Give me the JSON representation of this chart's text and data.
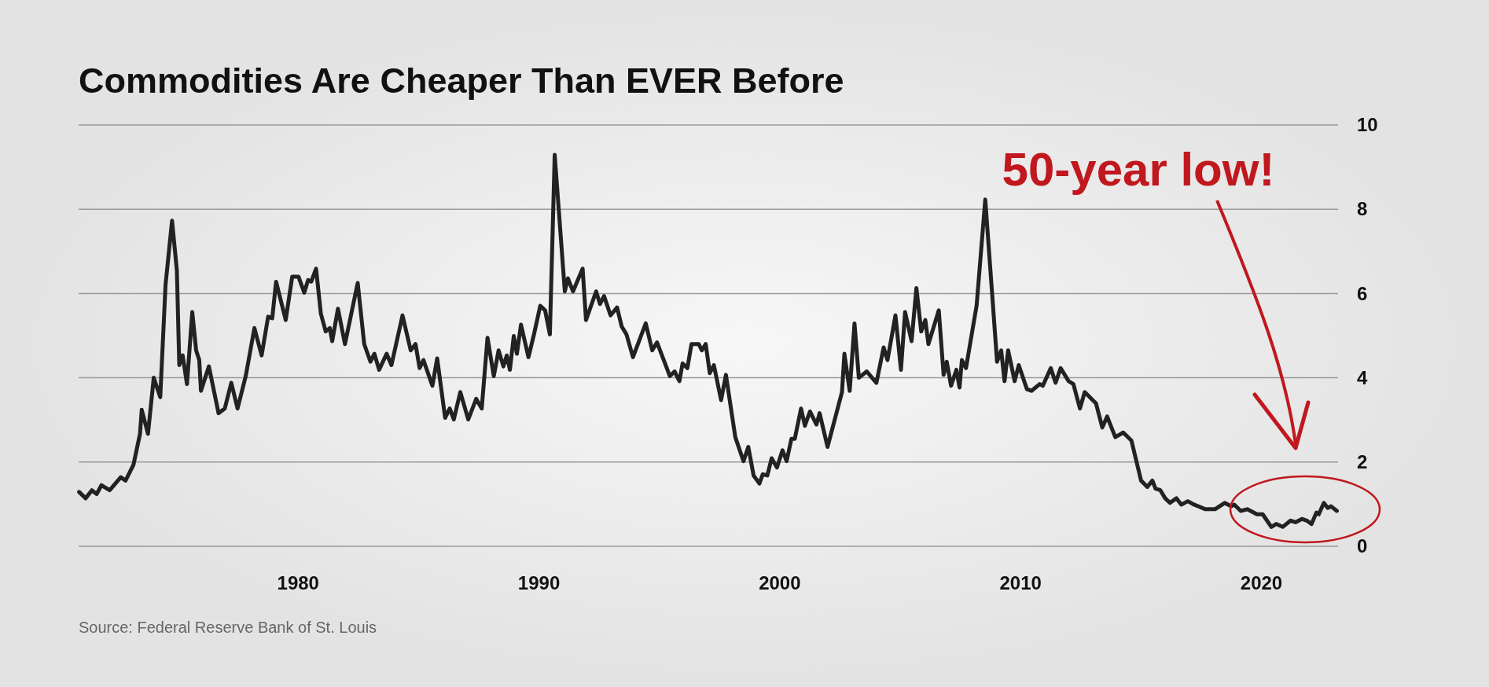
{
  "chart_data": {
    "type": "line",
    "title": "Commodities Are Cheaper Than EVER Before",
    "annotations": [
      "50-year low!",
      "Source: Federal Reserve Bank of St. Louis"
    ],
    "xlim": [
      1970.9,
      2023.2
    ],
    "xticks": [
      1980,
      1990,
      2000,
      2010,
      2020
    ],
    "ylim": [
      0,
      10
    ],
    "yticks": [
      0,
      2,
      4,
      6,
      8,
      10
    ],
    "grid": "y",
    "marker": "none",
    "line_style": "solid",
    "series": [
      {
        "color": "#222222",
        "x": [
          1970.92,
          1971.19,
          1971.45,
          1971.65,
          1971.85,
          1972.19,
          1972.65,
          1972.85,
          1973.18,
          1973.45,
          1973.52,
          1973.78,
          1974.02,
          1974.29,
          1974.51,
          1974.78,
          1974.98,
          1975.08,
          1975.22,
          1975.4,
          1975.62,
          1975.78,
          1975.91,
          1975.98,
          1976.31,
          1976.71,
          1976.97,
          1977.24,
          1977.5,
          1977.84,
          1978.2,
          1978.5,
          1978.77,
          1978.94,
          1979.1,
          1979.5,
          1979.77,
          1980.03,
          1980.27,
          1980.43,
          1980.56,
          1980.76,
          1980.96,
          1981.16,
          1981.33,
          1981.43,
          1981.67,
          1981.96,
          1982.49,
          1982.76,
          1983.02,
          1983.18,
          1983.38,
          1983.69,
          1983.89,
          1984.35,
          1984.69,
          1984.89,
          1985.06,
          1985.22,
          1985.59,
          1985.79,
          1986.12,
          1986.31,
          1986.48,
          1986.75,
          1987.08,
          1987.41,
          1987.64,
          1987.88,
          1988.14,
          1988.34,
          1988.54,
          1988.68,
          1988.81,
          1988.97,
          1989.1,
          1989.27,
          1989.58,
          1989.81,
          1990.07,
          1990.27,
          1990.47,
          1990.67,
          1991.09,
          1991.22,
          1991.43,
          1991.83,
          1991.97,
          1992.39,
          1992.55,
          1992.72,
          1992.99,
          1993.26,
          1993.45,
          1993.65,
          1993.92,
          1994.45,
          1994.72,
          1994.92,
          1995.45,
          1995.65,
          1995.85,
          1995.98,
          1996.18,
          1996.35,
          1996.65,
          1996.78,
          1996.94,
          1997.11,
          1997.28,
          1997.58,
          1997.78,
          1998.17,
          1998.51,
          1998.71,
          1998.93,
          1999.17,
          1999.31,
          1999.5,
          1999.68,
          1999.9,
          2000.13,
          2000.3,
          2000.5,
          2000.64,
          2000.9,
          2001.06,
          2001.27,
          2001.54,
          2001.67,
          2002.0,
          2002.6,
          2002.7,
          2002.92,
          2003.12,
          2003.3,
          2003.63,
          2004.03,
          2004.33,
          2004.49,
          2004.82,
          2005.05,
          2005.22,
          2005.49,
          2005.69,
          2005.89,
          2006.06,
          2006.19,
          2006.62,
          2006.82,
          2006.95,
          2007.13,
          2007.35,
          2007.48,
          2007.58,
          2007.75,
          2008.19,
          2008.55,
          2009.04,
          2009.21,
          2009.35,
          2009.5,
          2009.77,
          2009.94,
          2010.28,
          2010.47,
          2010.81,
          2010.94,
          2011.27,
          2011.47,
          2011.68,
          2012.01,
          2012.21,
          2012.48,
          2012.68,
          2013.15,
          2013.41,
          2013.61,
          2013.95,
          2014.28,
          2014.62,
          2015.02,
          2015.28,
          2015.49,
          2015.62,
          2015.82,
          2016.02,
          2016.22,
          2016.49,
          2016.69,
          2016.96,
          2017.22,
          2017.69,
          2018.09,
          2018.49,
          2018.76,
          2018.89,
          2019.16,
          2019.43,
          2019.83,
          2020.07,
          2020.43,
          2020.63,
          2020.9,
          2021.23,
          2021.43,
          2021.7,
          2021.9,
          2022.1,
          2022.3,
          2022.4,
          2022.61,
          2022.77,
          2022.91,
          2023.15
        ],
        "values": [
          1.29,
          1.14,
          1.33,
          1.24,
          1.45,
          1.33,
          1.64,
          1.56,
          1.94,
          2.67,
          3.24,
          2.67,
          4.0,
          3.54,
          6.21,
          7.73,
          6.55,
          4.3,
          4.53,
          3.85,
          5.56,
          4.65,
          4.42,
          3.69,
          4.27,
          3.16,
          3.27,
          3.88,
          3.27,
          4.04,
          5.18,
          4.53,
          5.45,
          5.41,
          6.28,
          5.37,
          6.4,
          6.4,
          6.02,
          6.32,
          6.28,
          6.59,
          5.52,
          5.1,
          5.18,
          4.87,
          5.64,
          4.8,
          6.25,
          4.8,
          4.38,
          4.57,
          4.19,
          4.57,
          4.3,
          5.48,
          4.65,
          4.8,
          4.23,
          4.42,
          3.81,
          4.46,
          3.05,
          3.27,
          3.01,
          3.66,
          3.01,
          3.5,
          3.27,
          4.95,
          4.04,
          4.65,
          4.27,
          4.53,
          4.19,
          4.99,
          4.57,
          5.26,
          4.49,
          5.03,
          5.71,
          5.6,
          5.03,
          9.29,
          6.05,
          6.36,
          6.05,
          6.59,
          5.37,
          6.05,
          5.75,
          5.94,
          5.48,
          5.67,
          5.22,
          5.03,
          4.49,
          5.29,
          4.65,
          4.84,
          4.04,
          4.15,
          3.92,
          4.34,
          4.23,
          4.8,
          4.8,
          4.65,
          4.8,
          4.11,
          4.3,
          3.47,
          4.07,
          2.59,
          2.02,
          2.36,
          1.68,
          1.49,
          1.71,
          1.68,
          2.09,
          1.87,
          2.28,
          2.02,
          2.55,
          2.55,
          3.27,
          2.86,
          3.2,
          2.89,
          3.16,
          2.36,
          3.66,
          4.57,
          3.69,
          5.29,
          4.0,
          4.15,
          3.88,
          4.72,
          4.42,
          5.48,
          4.19,
          5.56,
          4.87,
          6.13,
          5.1,
          5.37,
          4.8,
          5.6,
          4.07,
          4.38,
          3.81,
          4.19,
          3.77,
          4.42,
          4.23,
          5.71,
          8.23,
          4.38,
          4.65,
          3.92,
          4.65,
          3.92,
          4.3,
          3.73,
          3.69,
          3.85,
          3.81,
          4.23,
          3.88,
          4.23,
          3.92,
          3.85,
          3.27,
          3.66,
          3.39,
          2.82,
          3.08,
          2.59,
          2.7,
          2.51,
          1.56,
          1.41,
          1.56,
          1.37,
          1.33,
          1.14,
          1.03,
          1.14,
          0.99,
          1.07,
          0.99,
          0.88,
          0.88,
          1.03,
          0.95,
          0.99,
          0.84,
          0.88,
          0.76,
          0.76,
          0.46,
          0.53,
          0.46,
          0.61,
          0.57,
          0.65,
          0.61,
          0.53,
          0.8,
          0.76,
          1.03,
          0.91,
          0.95,
          0.84
        ]
      }
    ]
  }
}
